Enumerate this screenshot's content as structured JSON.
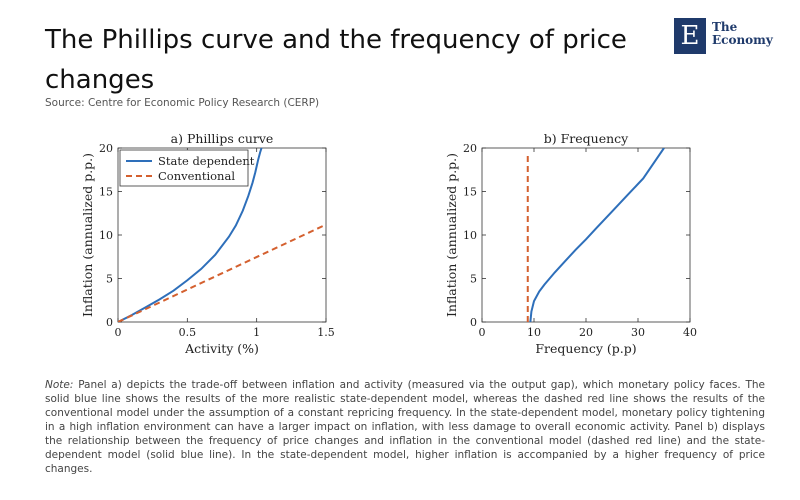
{
  "header": {
    "title": "The Phillips curve and the frequency of price changes",
    "source": "Source: Centre for Economic Policy Research (CERP)"
  },
  "logo": {
    "letter": "E",
    "line1": "The",
    "line2": "Economy",
    "color": "#1f3a6b"
  },
  "chart_data": [
    {
      "type": "line",
      "title": "a) Phillips curve",
      "xlabel": "Activity (%)",
      "ylabel": "Inflation (annualized p.p.)",
      "xlim": [
        0,
        1.5
      ],
      "ylim": [
        0,
        20
      ],
      "xticks": [
        0,
        0.5,
        1,
        1.5
      ],
      "xtick_labels": [
        "0",
        "0.5",
        "1",
        "1.5"
      ],
      "yticks": [
        0,
        5,
        10,
        15,
        20
      ],
      "ytick_labels": [
        "0",
        "5",
        "10",
        "15",
        "20"
      ],
      "legend": [
        "State dependent",
        "Conventional"
      ],
      "legend_position": "top-left",
      "series": [
        {
          "name": "State dependent",
          "color": "#2e6fba",
          "style": "solid",
          "x": [
            0,
            0.1,
            0.2,
            0.3,
            0.4,
            0.5,
            0.6,
            0.7,
            0.8,
            0.85,
            0.9,
            0.94,
            0.97,
            0.99,
            1.01,
            1.025,
            1.035
          ],
          "y": [
            0,
            0.8,
            1.7,
            2.6,
            3.6,
            4.8,
            6.1,
            7.7,
            9.8,
            11.1,
            12.8,
            14.5,
            16.0,
            17.2,
            18.6,
            19.5,
            20.0
          ]
        },
        {
          "name": "Conventional",
          "color": "#d4602f",
          "style": "dashed",
          "x": [
            0,
            1.5
          ],
          "y": [
            0,
            11.2
          ]
        }
      ]
    },
    {
      "type": "line",
      "title": "b) Frequency",
      "xlabel": "Frequency (p.p)",
      "ylabel": "Inflation (annualized p.p.)",
      "xlim": [
        0,
        40
      ],
      "ylim": [
        0,
        20
      ],
      "xticks": [
        0,
        10,
        20,
        30,
        40
      ],
      "xtick_labels": [
        "0",
        "10",
        "20",
        "30",
        "40"
      ],
      "yticks": [
        0,
        5,
        10,
        15,
        20
      ],
      "ytick_labels": [
        "0",
        "5",
        "10",
        "15",
        "20"
      ],
      "series": [
        {
          "name": "Conventional",
          "color": "#d4602f",
          "style": "dashed",
          "x": [
            8.8,
            8.8
          ],
          "y": [
            0,
            19.5
          ]
        },
        {
          "name": "State dependent",
          "color": "#2e6fba",
          "style": "solid",
          "x": [
            9.3,
            9.5,
            10,
            11,
            12,
            13,
            14,
            16,
            18,
            20,
            22,
            25,
            28,
            31,
            35
          ],
          "y": [
            0,
            1.2,
            2.4,
            3.5,
            4.3,
            5.0,
            5.7,
            7.0,
            8.3,
            9.5,
            10.8,
            12.7,
            14.6,
            16.5,
            20.0
          ]
        }
      ]
    }
  ],
  "note": {
    "label": "Note:",
    "text": " Panel a) depicts the trade-off between inflation and activity (measured via the output gap), which monetary policy faces. The solid blue line shows the results of the more realistic state-dependent model, whereas the dashed red line shows the results of the conventional model under the assumption of a constant repricing frequency. In the state-dependent model, monetary policy tightening in a high inflation environment can have a larger impact on inflation, with less damage to overall economic activity. Panel b) displays the relationship between the frequency of price changes and inflation in the conventional model (dashed red line) and the state-dependent model (solid blue line). In the state-dependent model, higher inflation is accompanied by a higher frequency of price changes."
  }
}
